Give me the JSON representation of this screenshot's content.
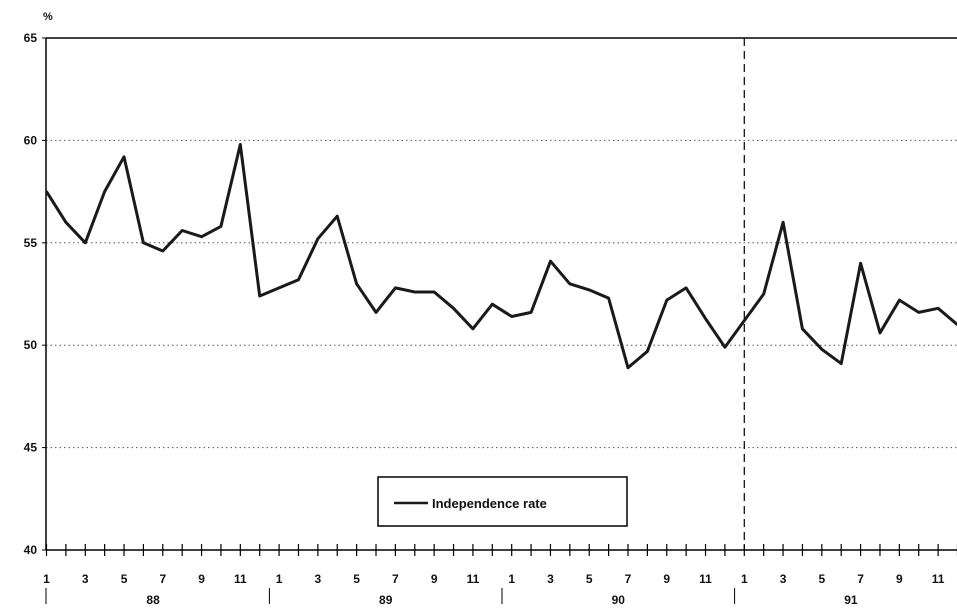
{
  "chart_data": {
    "type": "line",
    "title": "",
    "xlabel": "",
    "ylabel": "%",
    "ylim": [
      40,
      65
    ],
    "yticks": [
      40,
      45,
      50,
      55,
      60,
      65
    ],
    "ygrid_lines": [
      45,
      50,
      55,
      60
    ],
    "legend": {
      "placement": "bottom-center",
      "entries": [
        "Independence rate"
      ]
    },
    "x_tick_labels": [
      "1",
      "3",
      "5",
      "7",
      "9",
      "11",
      "1",
      "3",
      "5",
      "7",
      "9",
      "11",
      "1",
      "3",
      "5",
      "7",
      "9",
      "11",
      "1",
      "3",
      "5",
      "7",
      "9",
      "11"
    ],
    "years": [
      "88",
      "89",
      "90",
      "91"
    ],
    "vertical_marker_after_index": 36,
    "series": [
      {
        "name": "Independence rate",
        "color": "#1a1a1a",
        "values": [
          57.5,
          56.0,
          55.0,
          57.5,
          59.2,
          55.0,
          54.6,
          55.6,
          55.3,
          55.8,
          59.8,
          52.4,
          52.8,
          53.2,
          55.2,
          56.3,
          53.0,
          51.6,
          52.8,
          52.6,
          52.6,
          51.8,
          50.8,
          52.0,
          51.4,
          51.6,
          54.1,
          53.0,
          52.7,
          52.3,
          48.9,
          49.7,
          52.2,
          52.8,
          51.3,
          49.9,
          51.2,
          52.5,
          56.0,
          50.8,
          49.8,
          49.1,
          54.0,
          50.6,
          52.2,
          51.6,
          51.8,
          51.0
        ]
      }
    ]
  }
}
